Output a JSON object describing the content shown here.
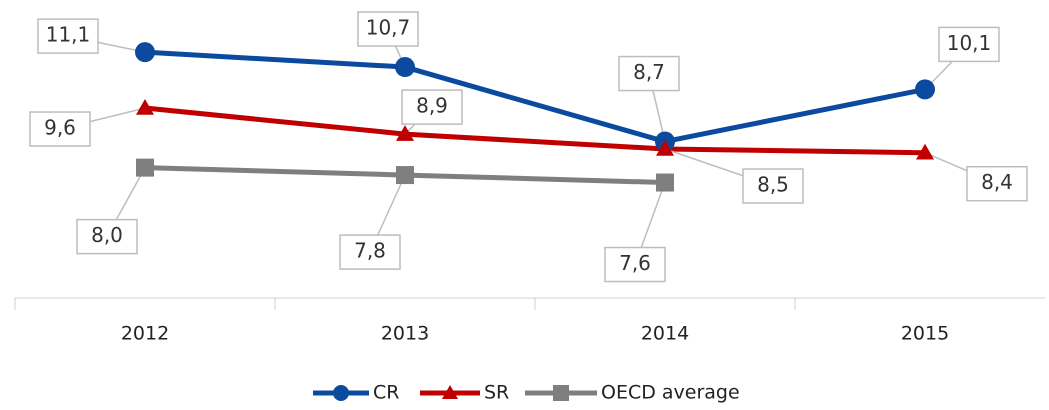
{
  "chart_data": {
    "type": "line",
    "categories": [
      "2012",
      "2013",
      "2014",
      "2015"
    ],
    "series": [
      {
        "name": "CR",
        "color": "#0b4a9e",
        "marker": "circle",
        "values": [
          11.1,
          10.7,
          8.7,
          10.1
        ],
        "value_labels": [
          "11,1",
          "10,7",
          "8,7",
          "10,1"
        ]
      },
      {
        "name": "SR",
        "color": "#c00000",
        "marker": "triangle",
        "values": [
          9.6,
          8.9,
          8.5,
          8.4
        ],
        "value_labels": [
          "9,6",
          "8,9",
          "8,5",
          "8,4"
        ]
      },
      {
        "name": "OECD average",
        "color": "#7f7f7f",
        "marker": "square",
        "values": [
          8.0,
          7.8,
          7.6,
          null
        ],
        "value_labels": [
          "8,0",
          "7,8",
          "7,6",
          null
        ]
      }
    ],
    "ylim": [
      4.5,
      12.5
    ],
    "legend": "bottom"
  }
}
